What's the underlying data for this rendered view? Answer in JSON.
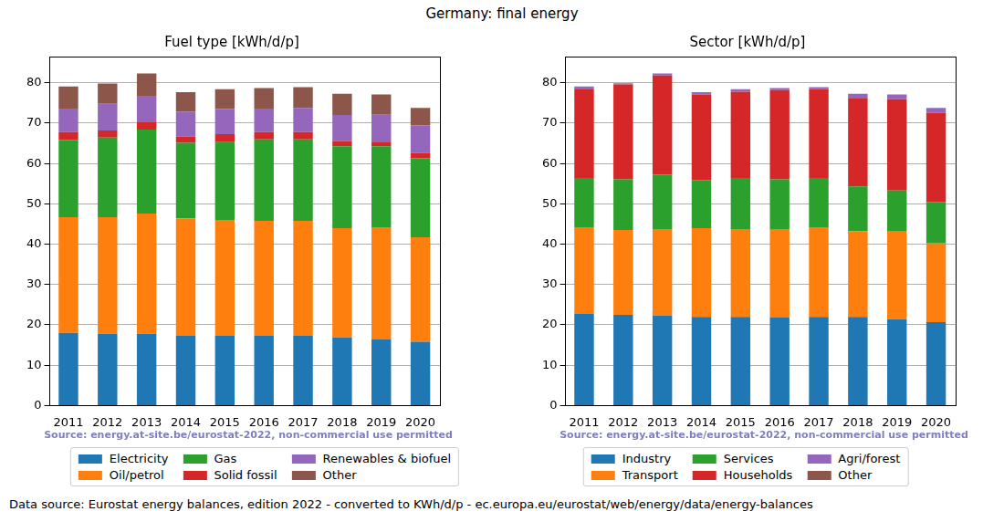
{
  "title": "Germany: final energy",
  "footnote": "Data source: Eurostat energy balances, edition 2022 - converted to KWh/d/p - ec.europa.eu/eurostat/web/energy/data/energy-balances",
  "chart_data": [
    {
      "type": "bar",
      "title": "Fuel type [kWh/d/p]",
      "annotation": "Source: energy.at-site.be/eurostat-2022, non-commercial use permitted",
      "categories": [
        "2011",
        "2012",
        "2013",
        "2014",
        "2015",
        "2016",
        "2017",
        "2018",
        "2019",
        "2020"
      ],
      "series": [
        {
          "name": "Electricity",
          "color": "#1f77b4",
          "values": [
            18.0,
            17.8,
            17.8,
            17.3,
            17.3,
            17.3,
            17.3,
            16.9,
            16.4,
            15.8
          ]
        },
        {
          "name": "Oil/petrol",
          "color": "#ff7f0e",
          "values": [
            28.7,
            28.9,
            29.8,
            29.1,
            28.7,
            28.5,
            28.5,
            27.1,
            27.8,
            25.9
          ]
        },
        {
          "name": "Gas",
          "color": "#2ca02c",
          "values": [
            19.1,
            19.7,
            20.8,
            18.7,
            19.3,
            20.2,
            20.2,
            20.3,
            20.1,
            19.6
          ]
        },
        {
          "name": "Solid fossil",
          "color": "#d62728",
          "values": [
            2.0,
            1.8,
            1.8,
            1.6,
            2.0,
            1.8,
            1.8,
            1.3,
            1.1,
            1.3
          ]
        },
        {
          "name": "Renewables & biofuel",
          "color": "#9467bd",
          "values": [
            5.8,
            6.6,
            6.6,
            6.1,
            6.2,
            5.8,
            6.0,
            6.4,
            6.7,
            6.9
          ]
        },
        {
          "name": "Other",
          "color": "#8c564b",
          "values": [
            5.5,
            5.0,
            5.5,
            4.9,
            4.9,
            5.1,
            5.1,
            5.3,
            5.0,
            4.3
          ]
        }
      ],
      "stacked": true,
      "ylim": [
        0,
        86.5
      ],
      "yticks": [
        0,
        10,
        20,
        30,
        40,
        50,
        60,
        70,
        80
      ],
      "grid": true,
      "legend": "bottom"
    },
    {
      "type": "bar",
      "title": "Sector [kWh/d/p]",
      "annotation": "Source: energy.at-site.be/eurostat-2022, non-commercial use permitted",
      "categories": [
        "2011",
        "2012",
        "2013",
        "2014",
        "2015",
        "2016",
        "2017",
        "2018",
        "2019",
        "2020"
      ],
      "series": [
        {
          "name": "Industry",
          "color": "#1f77b4",
          "values": [
            22.8,
            22.5,
            22.3,
            22.0,
            22.0,
            21.8,
            22.0,
            22.0,
            21.4,
            20.7
          ]
        },
        {
          "name": "Transport",
          "color": "#ff7f0e",
          "values": [
            21.4,
            21.0,
            21.3,
            22.0,
            21.6,
            21.8,
            22.2,
            21.2,
            21.7,
            19.5
          ]
        },
        {
          "name": "Services",
          "color": "#2ca02c",
          "values": [
            12.2,
            12.6,
            13.6,
            11.9,
            12.8,
            12.5,
            12.2,
            11.1,
            10.2,
            10.3
          ]
        },
        {
          "name": "Households",
          "color": "#d62728",
          "values": [
            22.1,
            23.5,
            24.6,
            21.2,
            21.4,
            22.1,
            22.0,
            21.8,
            22.6,
            22.1
          ]
        },
        {
          "name": "Agri/forest",
          "color": "#9467bd",
          "values": [
            0.6,
            0.3,
            0.5,
            0.6,
            0.6,
            0.5,
            0.5,
            1.2,
            1.2,
            1.2
          ]
        },
        {
          "name": "Other",
          "color": "#8c564b",
          "values": [
            0,
            0,
            0,
            0,
            0,
            0,
            0,
            0,
            0,
            0
          ]
        }
      ],
      "stacked": true,
      "ylim": [
        0,
        86.5
      ],
      "yticks": [
        0,
        10,
        20,
        30,
        40,
        50,
        60,
        70,
        80
      ],
      "grid": true,
      "legend": "bottom"
    }
  ]
}
